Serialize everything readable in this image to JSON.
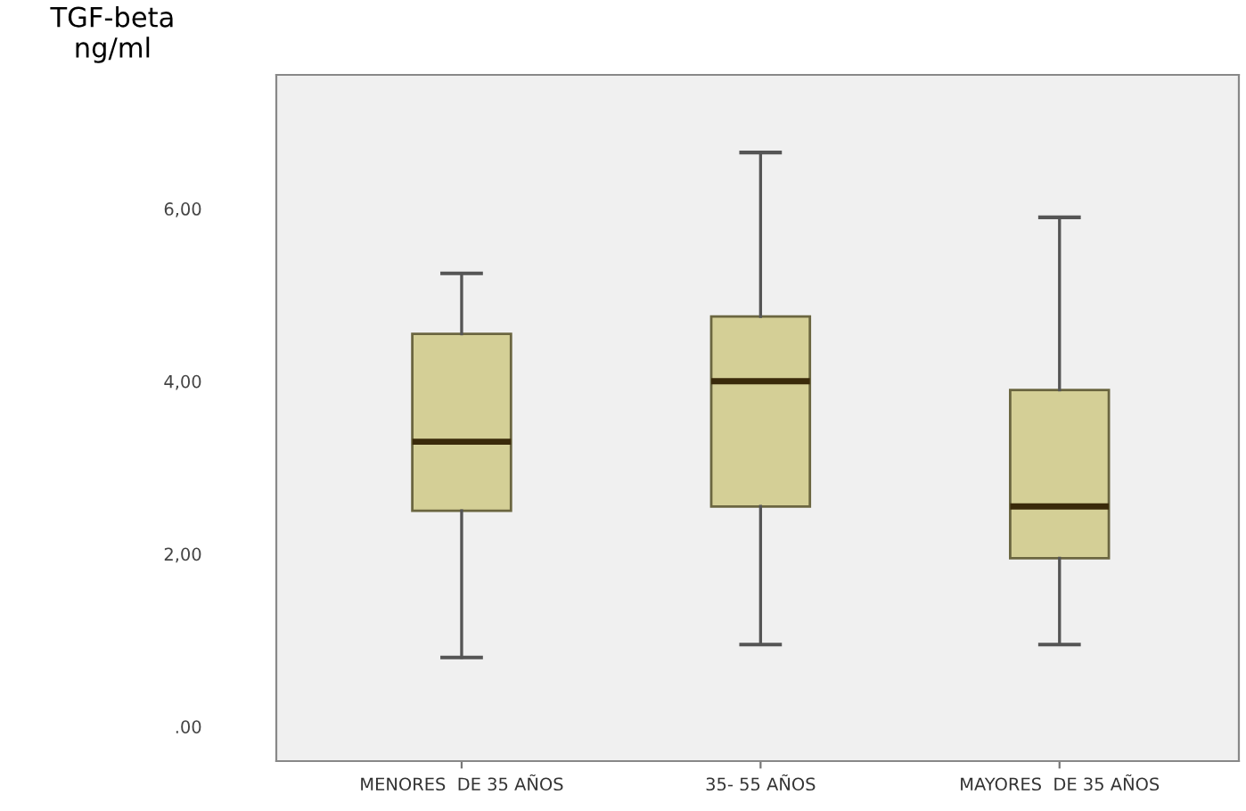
{
  "chart_data": {
    "type": "box",
    "ylabel": "TGF-beta\nng/ml",
    "categories": [
      "MENORES  DE 35 AÑOS",
      "35- 55 AÑOS",
      "MAYORES  DE 35 AÑOS"
    ],
    "boxes": [
      {
        "low": 0.8,
        "q1": 2.5,
        "median": 3.3,
        "q3": 4.55,
        "high": 5.25
      },
      {
        "low": 0.95,
        "q1": 2.55,
        "median": 4.0,
        "q3": 4.75,
        "high": 6.65
      },
      {
        "low": 0.95,
        "q1": 1.95,
        "median": 2.55,
        "q3": 3.9,
        "high": 5.9
      }
    ],
    "color": "#d4cf96",
    "ylim": [
      -0.4,
      7.55
    ],
    "yticks": [
      {
        "value": 0,
        "label": ".00"
      },
      {
        "value": 2,
        "label": "2,00"
      },
      {
        "value": 4,
        "label": "4,00"
      },
      {
        "value": 6,
        "label": "6,00"
      }
    ],
    "grid": false
  }
}
